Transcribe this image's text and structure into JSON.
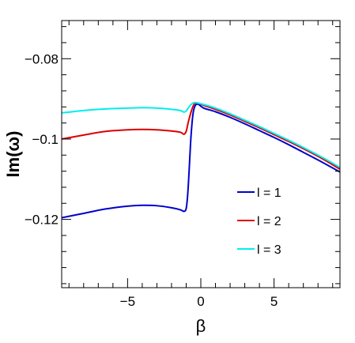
{
  "chart_data": {
    "type": "line",
    "title": "",
    "xlabel": "β",
    "ylabel": "Im(ω)",
    "xlim": [
      -9.5,
      9.5
    ],
    "ylim": [
      -0.137,
      -0.0705
    ],
    "x_ticks": [
      -5,
      0,
      5
    ],
    "x_tick_labels": [
      "−5",
      "0",
      "5"
    ],
    "y_ticks": [
      -0.12,
      -0.1,
      -0.08
    ],
    "y_tick_labels": [
      "−0.12",
      "−0.1",
      "−0.08"
    ],
    "grid": false,
    "legend_position": "lower-right",
    "series": [
      {
        "name": "l = 1",
        "color": "#0000cc",
        "points": [
          [
            -9.5,
            -0.1196
          ],
          [
            -8,
            -0.1185
          ],
          [
            -6.5,
            -0.1174
          ],
          [
            -5,
            -0.1167
          ],
          [
            -4,
            -0.1165
          ],
          [
            -3,
            -0.1166
          ],
          [
            -2,
            -0.1171
          ],
          [
            -1.4,
            -0.1176
          ],
          [
            -1.15,
            -0.118
          ],
          [
            -1.0,
            -0.1173
          ],
          [
            -0.9,
            -0.114
          ],
          [
            -0.8,
            -0.108
          ],
          [
            -0.7,
            -0.101
          ],
          [
            -0.6,
            -0.096
          ],
          [
            -0.5,
            -0.093
          ],
          [
            -0.35,
            -0.0915
          ],
          [
            -0.15,
            -0.0914
          ],
          [
            0.2,
            -0.0923
          ],
          [
            1,
            -0.0932
          ],
          [
            2,
            -0.0946
          ],
          [
            3,
            -0.0962
          ],
          [
            4,
            -0.0979
          ],
          [
            5,
            -0.0996
          ],
          [
            6,
            -0.1014
          ],
          [
            7,
            -0.1033
          ],
          [
            8,
            -0.1052
          ],
          [
            9,
            -0.1072
          ],
          [
            9.5,
            -0.1082
          ]
        ]
      },
      {
        "name": "l = 2",
        "color": "#dd0000",
        "points": [
          [
            -9.5,
            -0.1
          ],
          [
            -8,
            -0.099
          ],
          [
            -6.5,
            -0.0981
          ],
          [
            -5,
            -0.0977
          ],
          [
            -4,
            -0.0976
          ],
          [
            -3,
            -0.0977
          ],
          [
            -2,
            -0.098
          ],
          [
            -1.4,
            -0.0983
          ],
          [
            -1.15,
            -0.0988
          ],
          [
            -1.0,
            -0.0981
          ],
          [
            -0.9,
            -0.0965
          ],
          [
            -0.8,
            -0.095
          ],
          [
            -0.7,
            -0.0937
          ],
          [
            -0.6,
            -0.0925
          ],
          [
            -0.5,
            -0.0916
          ],
          [
            -0.35,
            -0.091
          ],
          [
            -0.15,
            -0.0911
          ],
          [
            0.2,
            -0.0916
          ],
          [
            1,
            -0.0926
          ],
          [
            2,
            -0.094
          ],
          [
            3,
            -0.0956
          ],
          [
            4,
            -0.0972
          ],
          [
            5,
            -0.0989
          ],
          [
            6,
            -0.1006
          ],
          [
            7,
            -0.1024
          ],
          [
            8,
            -0.1043
          ],
          [
            9,
            -0.1064
          ],
          [
            9.5,
            -0.1075
          ]
        ]
      },
      {
        "name": "l = 3",
        "color": "#00eeee",
        "points": [
          [
            -9.5,
            -0.0935
          ],
          [
            -8,
            -0.0929
          ],
          [
            -6.5,
            -0.0925
          ],
          [
            -5,
            -0.0923
          ],
          [
            -4,
            -0.0922
          ],
          [
            -3,
            -0.0923
          ],
          [
            -2,
            -0.0926
          ],
          [
            -1.4,
            -0.0929
          ],
          [
            -1.15,
            -0.0933
          ],
          [
            -1.0,
            -0.093
          ],
          [
            -0.9,
            -0.0925
          ],
          [
            -0.8,
            -0.092
          ],
          [
            -0.7,
            -0.0915
          ],
          [
            -0.6,
            -0.0912
          ],
          [
            -0.5,
            -0.091
          ],
          [
            -0.35,
            -0.0909
          ],
          [
            -0.15,
            -0.0911
          ],
          [
            0.2,
            -0.0914
          ],
          [
            1,
            -0.0923
          ],
          [
            2,
            -0.0937
          ],
          [
            3,
            -0.0953
          ],
          [
            4,
            -0.0969
          ],
          [
            5,
            -0.0986
          ],
          [
            6,
            -0.1003
          ],
          [
            7,
            -0.1021
          ],
          [
            8,
            -0.104
          ],
          [
            9,
            -0.106
          ],
          [
            9.5,
            -0.1071
          ]
        ]
      }
    ]
  }
}
